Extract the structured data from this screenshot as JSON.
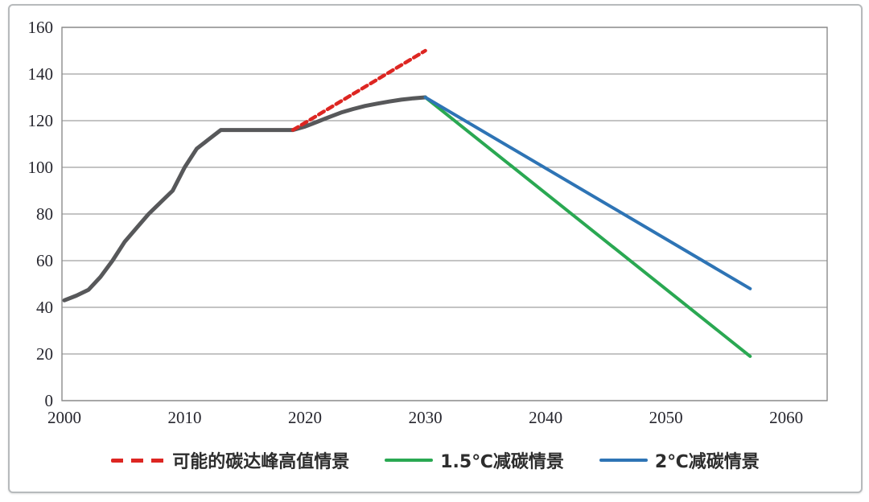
{
  "chart_data": {
    "type": "line",
    "title": "",
    "xlabel": "",
    "ylabel": "",
    "x_axis": {
      "ticks": [
        2000,
        2010,
        2020,
        2030,
        2040,
        2050,
        2060
      ],
      "range": [
        2000,
        2063
      ]
    },
    "y_axis": {
      "ticks": [
        0,
        20,
        40,
        60,
        80,
        100,
        120,
        140,
        160
      ],
      "range": [
        0,
        160
      ],
      "tick_step": 20
    },
    "grid": "horizontal",
    "legend_position": "bottom",
    "series": [
      {
        "id": "historical-emissions",
        "legend_label": "",
        "color": "#57585a",
        "style": "solid",
        "stroke_width": 5,
        "points": [
          [
            2000,
            43
          ],
          [
            2001,
            45
          ],
          [
            2002,
            47.5
          ],
          [
            2003,
            53
          ],
          [
            2004,
            60
          ],
          [
            2005,
            68
          ],
          [
            2006,
            74
          ],
          [
            2007,
            80
          ],
          [
            2008,
            85
          ],
          [
            2009,
            90
          ],
          [
            2010,
            100
          ],
          [
            2011,
            108
          ],
          [
            2012,
            112
          ],
          [
            2013,
            116
          ],
          [
            2014,
            116
          ],
          [
            2015,
            116
          ],
          [
            2016,
            116
          ],
          [
            2017,
            116
          ],
          [
            2018,
            116
          ],
          [
            2019,
            116
          ],
          [
            2020,
            117.5
          ],
          [
            2021,
            119.5
          ],
          [
            2022,
            121.5
          ],
          [
            2023,
            123.5
          ],
          [
            2024,
            125
          ],
          [
            2025,
            126.3
          ],
          [
            2026,
            127.3
          ],
          [
            2027,
            128.2
          ],
          [
            2028,
            129
          ],
          [
            2029,
            129.6
          ],
          [
            2030,
            130
          ]
        ]
      },
      {
        "id": "peak-high-scenario",
        "legend_label": "可能的碳达峰高值情景",
        "color": "#dd2622",
        "style": "dashed",
        "stroke_width": 4.5,
        "points": [
          [
            2019,
            116
          ],
          [
            2030,
            150
          ]
        ]
      },
      {
        "id": "reduction-scenario-1p5c",
        "legend_label": "1.5℃减碳情景",
        "color": "#2aa852",
        "style": "solid",
        "stroke_width": 4,
        "points": [
          [
            2030,
            130
          ],
          [
            2057,
            19
          ]
        ]
      },
      {
        "id": "reduction-scenario-2c",
        "legend_label": "2℃减碳情景",
        "color": "#2e74b5",
        "style": "solid",
        "stroke_width": 4,
        "points": [
          [
            2030,
            130
          ],
          [
            2057,
            48
          ]
        ]
      }
    ]
  },
  "colors": {
    "grid_line": "#a0a0a0",
    "plot_border": "#8c8c8c",
    "tick_label": "#26262e",
    "card_border": "#b7babc"
  }
}
